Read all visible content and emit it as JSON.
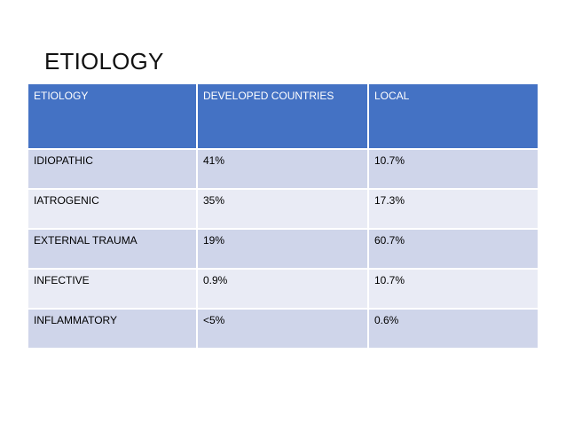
{
  "slide": {
    "title": "ETIOLOGY"
  },
  "table": {
    "headers": [
      "ETIOLOGY",
      "DEVELOPED COUNTRIES",
      "LOCAL"
    ],
    "rows": [
      [
        "IDIOPATHIC",
        "41%",
        "10.7%"
      ],
      [
        "IATROGENIC",
        "35%",
        "17.3%"
      ],
      [
        "EXTERNAL TRAUMA",
        "19%",
        "60.7%"
      ],
      [
        "INFECTIVE",
        "0.9%",
        "10.7%"
      ],
      [
        "INFLAMMATORY",
        "<5%",
        "0.6%"
      ]
    ]
  },
  "colors": {
    "header_background": "#4472c4",
    "row_band_dark": "#cfd5ea",
    "row_band_light": "#e9ebf5"
  }
}
